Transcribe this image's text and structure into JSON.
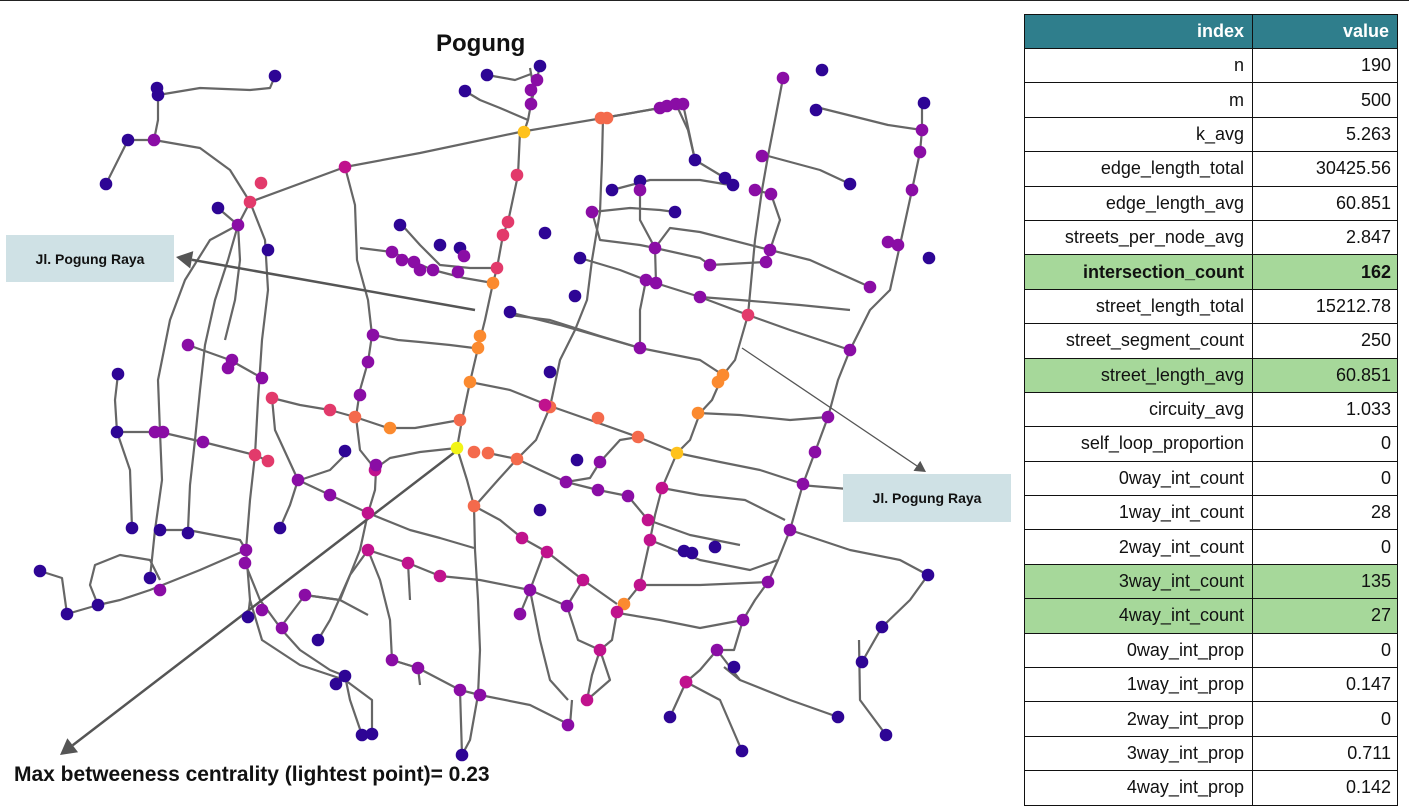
{
  "map": {
    "title": "Pogung",
    "caption": "Max betweeness centrality (lightest point)= 0.23",
    "street_label_left": "Jl. Pogung Raya",
    "street_label_right": "Jl. Pogung Raya",
    "node_colors": {
      "dark": "#2e0595",
      "mid": "#8a0da5",
      "magenta": "#c0128d",
      "pink": "#e23a6b",
      "salmon": "#f46a4c",
      "orange": "#fb8a2f",
      "gold": "#ffc21c",
      "yellow": "#f2f416"
    },
    "edge_color": "#666666"
  },
  "table": {
    "headers": [
      "index",
      "value"
    ],
    "rows": [
      {
        "key": "n",
        "value": "190"
      },
      {
        "key": "m",
        "value": "500"
      },
      {
        "key": "k_avg",
        "value": "5.263"
      },
      {
        "key": "edge_length_total",
        "value": "30425.56"
      },
      {
        "key": "edge_length_avg",
        "value": "60.851"
      },
      {
        "key": "streets_per_node_avg",
        "value": "2.847"
      },
      {
        "key": "intersection_count",
        "value": "162"
      },
      {
        "key": "street_length_total",
        "value": "15212.78"
      },
      {
        "key": "street_segment_count",
        "value": "250"
      },
      {
        "key": "street_length_avg",
        "value": "60.851"
      },
      {
        "key": "circuity_avg",
        "value": "1.033"
      },
      {
        "key": "self_loop_proportion",
        "value": "0"
      },
      {
        "key": "0way_int_count",
        "value": "0"
      },
      {
        "key": "1way_int_count",
        "value": "28"
      },
      {
        "key": "2way_int_count",
        "value": "0"
      },
      {
        "key": "3way_int_count",
        "value": "135"
      },
      {
        "key": "4way_int_count",
        "value": "27"
      },
      {
        "key": "0way_int_prop",
        "value": "0"
      },
      {
        "key": "1way_int_prop",
        "value": "0.147"
      },
      {
        "key": "2way_int_prop",
        "value": "0"
      },
      {
        "key": "3way_int_prop",
        "value": "0.711"
      },
      {
        "key": "4way_int_prop",
        "value": "0.142"
      }
    ],
    "highlight_color": "#a6d89a",
    "header_color": "#2f7e8c"
  }
}
